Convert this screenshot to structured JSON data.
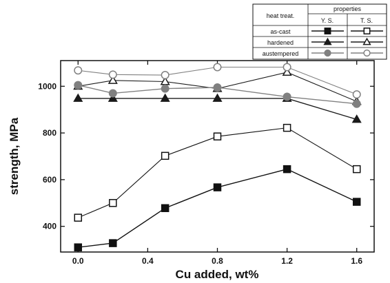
{
  "chart_data": {
    "type": "line",
    "xlabel": "Cu added, wt%",
    "ylabel": "strength, MPa",
    "xlim": [
      -0.1,
      1.7
    ],
    "ylim": [
      290,
      1110
    ],
    "x_ticks": [
      0.0,
      0.4,
      0.8,
      1.2,
      1.6
    ],
    "x_tick_labels": [
      "0.0",
      "0.4",
      "0.8",
      "1.2",
      "1.6"
    ],
    "y_ticks": [
      400,
      600,
      800,
      1000
    ],
    "y_tick_labels": [
      "400",
      "600",
      "800",
      "1000"
    ],
    "x": [
      0.0,
      0.2,
      0.5,
      0.8,
      1.2,
      1.6
    ],
    "series": [
      {
        "heat_treatment": "as-cast",
        "property": "Y. S.",
        "marker": "square",
        "filled": true,
        "values": [
          310,
          328,
          478,
          567,
          645,
          505
        ]
      },
      {
        "heat_treatment": "as-cast",
        "property": "T. S.",
        "marker": "square",
        "filled": false,
        "values": [
          437,
          500,
          702,
          785,
          822,
          645
        ]
      },
      {
        "heat_treatment": "hardened",
        "property": "Y. S.",
        "marker": "triangle",
        "filled": true,
        "values": [
          948,
          948,
          948,
          948,
          948,
          858
        ]
      },
      {
        "heat_treatment": "hardened",
        "property": "T. S.",
        "marker": "triangle",
        "filled": false,
        "values": [
          1000,
          1025,
          1020,
          990,
          1060,
          935
        ]
      },
      {
        "heat_treatment": "austempered",
        "property": "Y. S.",
        "marker": "circle",
        "filled": true,
        "values": [
          1005,
          970,
          990,
          995,
          955,
          925
        ]
      },
      {
        "heat_treatment": "austempered",
        "property": "T. S.",
        "marker": "circle",
        "filled": false,
        "values": [
          1068,
          1050,
          1048,
          1082,
          1082,
          965
        ]
      }
    ],
    "legend": {
      "placement": "top-right",
      "header_left": "heat treat.",
      "header_right": "properties",
      "col_ys": "Y. S.",
      "col_ts": "T. S.",
      "rows": [
        "as-cast",
        "hardened",
        "austempered"
      ]
    },
    "colors": {
      "as_cast": "#111111",
      "hardened": "#1a1a1a",
      "austempered": "#808080"
    }
  }
}
